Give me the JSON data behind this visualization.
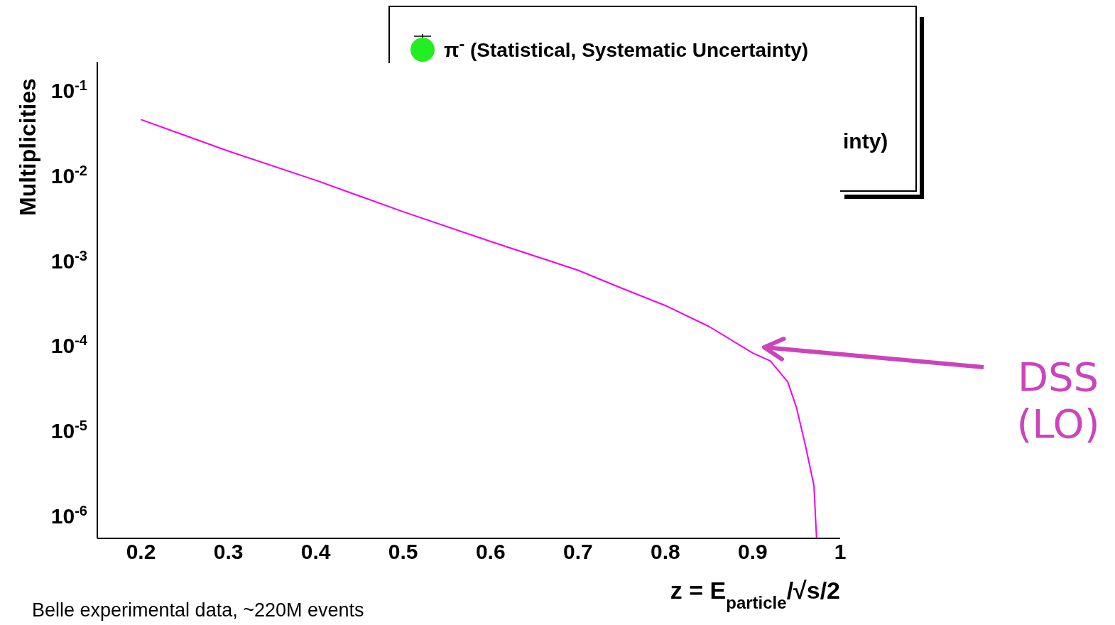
{
  "chart_data": {
    "type": "line",
    "xlabel": "z = E$_{particle}$/√s/2",
    "ylabel": "Multiplicities",
    "xlim": [
      0.15,
      1.0
    ],
    "xticks": [
      0.2,
      0.3,
      0.4,
      0.5,
      0.6,
      0.7,
      0.8,
      0.9,
      1
    ],
    "ylim": [
      5.5e-07,
      0.22
    ],
    "log": "y",
    "yticks": [
      {
        "value": 1e-06,
        "label": "10$^{-6}$"
      },
      {
        "value": 1e-05,
        "label": "10$^{-5}$"
      },
      {
        "value": 0.0001,
        "label": "10$^{-4}$"
      },
      {
        "value": 0.001,
        "label": "10$^{-3}$"
      },
      {
        "value": 0.01,
        "label": "10$^{-2}$"
      },
      {
        "value": 0.1,
        "label": "10$^{-1}$"
      }
    ],
    "legend": "top",
    "series": [
      {
        "name": "π$^{-}$ (Statistical, Systematic Uncertainty)",
        "color": "#22ee22",
        "type": "scatter",
        "marker": "circle"
      },
      {
        "color": "#ee00ee",
        "x": [
          0.2,
          0.3,
          0.4,
          0.5,
          0.6,
          0.7,
          0.75,
          0.8,
          0.85,
          0.9,
          0.92,
          0.94,
          0.95,
          0.96,
          0.97,
          0.973
        ],
        "values": [
          0.046,
          0.0196,
          0.0089,
          0.0038,
          0.0017,
          0.00078,
          0.00048,
          0.0003,
          0.00017,
          8.3e-05,
          6.7e-05,
          3.8e-05,
          1.9e-05,
          7e-06,
          2.3e-06,
          5.5e-07
        ]
      }
    ],
    "annotations": [
      "DSS (LO)",
      "inty)",
      "Belle experimental data, ~220M events"
    ]
  }
}
